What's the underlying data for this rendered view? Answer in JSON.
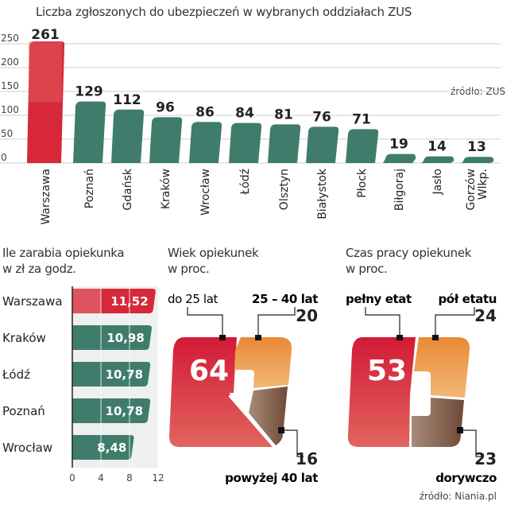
{
  "chart_data": [
    {
      "type": "bar",
      "title": "Liczba zgłoszonych do ubezpieczeń w wybranych oddziałach ZUS",
      "source": "źródło: ZUS",
      "categories": [
        "Warszawa",
        "Poznań",
        "Gdańsk",
        "Kraków",
        "Wrocław",
        "Łódź",
        "Olsztyn",
        "Białystok",
        "Płock",
        "Biłgoraj",
        "Jasło",
        "Gorzów Wlkp."
      ],
      "values": [
        261,
        129,
        112,
        96,
        86,
        84,
        81,
        76,
        71,
        19,
        14,
        13
      ],
      "ylim": [
        0,
        250
      ],
      "yticks": [
        0,
        50,
        100,
        150,
        200,
        250
      ],
      "grid": true,
      "highlight_color": "#d7283a",
      "bar_color": "#3f7c6b"
    },
    {
      "type": "bar",
      "orientation": "horizontal",
      "title": "Ile zarabia opiekunka",
      "subtitle": "w zł za godz.",
      "categories": [
        "Warszawa",
        "Kraków",
        "Łódź",
        "Poznań",
        "Wrocław"
      ],
      "values": [
        11.52,
        10.98,
        10.78,
        10.78,
        8.48
      ],
      "labels": [
        "11,52",
        "10,98",
        "10,78",
        "10,78",
        "8,48"
      ],
      "xlim": [
        0,
        12
      ],
      "xticks": [
        0,
        4,
        8,
        12
      ],
      "highlight_color": "#d7283a",
      "bar_color": "#3f7c6b"
    },
    {
      "type": "pie",
      "title": "Wiek opiekunek",
      "subtitle": "w proc.",
      "slices": [
        {
          "name": "do 25 lat",
          "value": 64,
          "color": "#d42a3c"
        },
        {
          "name": "25 – 40 lat",
          "value": 20,
          "color": "#e8913e"
        },
        {
          "name": "powyżej 40 lat",
          "value": 16,
          "color": "#7a5545"
        }
      ]
    },
    {
      "type": "pie",
      "title": "Czas pracy opiekunek",
      "subtitle": "w proc.",
      "source": "źródło: Niania.pl",
      "slices": [
        {
          "name": "pełny etat",
          "value": 53,
          "color": "#d42a3c"
        },
        {
          "name": "pół etatu",
          "value": 24,
          "color": "#e8913e"
        },
        {
          "name": "dorywczo",
          "value": 23,
          "color": "#7a5545"
        }
      ]
    }
  ]
}
